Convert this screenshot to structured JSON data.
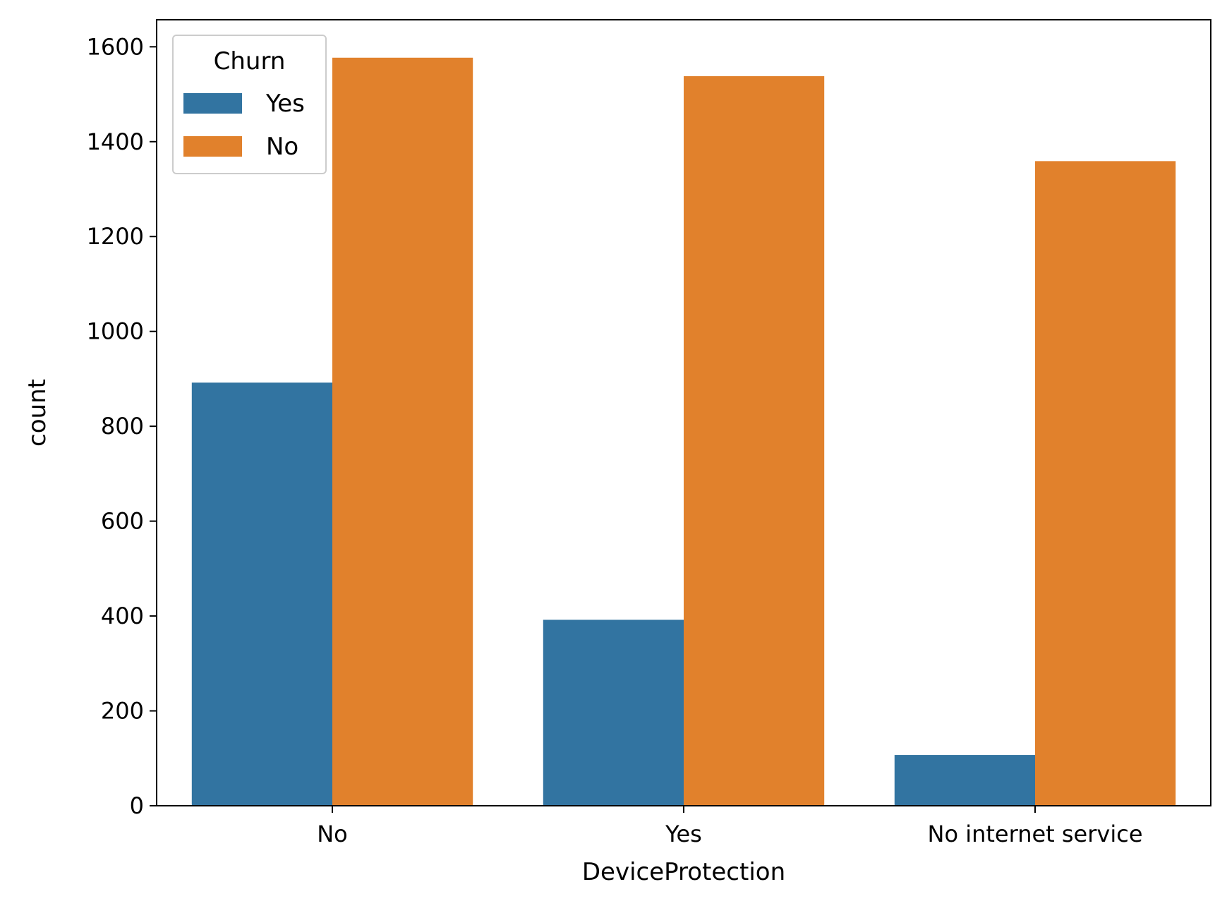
{
  "chart_data": {
    "type": "bar",
    "title": "",
    "xlabel": "DeviceProtection",
    "ylabel": "count",
    "categories": [
      "No",
      "Yes",
      "No internet service"
    ],
    "series": [
      {
        "name": "Yes",
        "color": "#3274a1",
        "values": [
          892,
          392,
          107
        ]
      },
      {
        "name": "No",
        "color": "#e1812c",
        "values": [
          1577,
          1538,
          1359
        ]
      }
    ],
    "ylim": [
      0,
      1657
    ],
    "yticks": [
      0,
      200,
      400,
      600,
      800,
      1000,
      1200,
      1400,
      1600
    ],
    "grid": false,
    "legend": {
      "title": "Churn",
      "placement": "top-left"
    }
  }
}
